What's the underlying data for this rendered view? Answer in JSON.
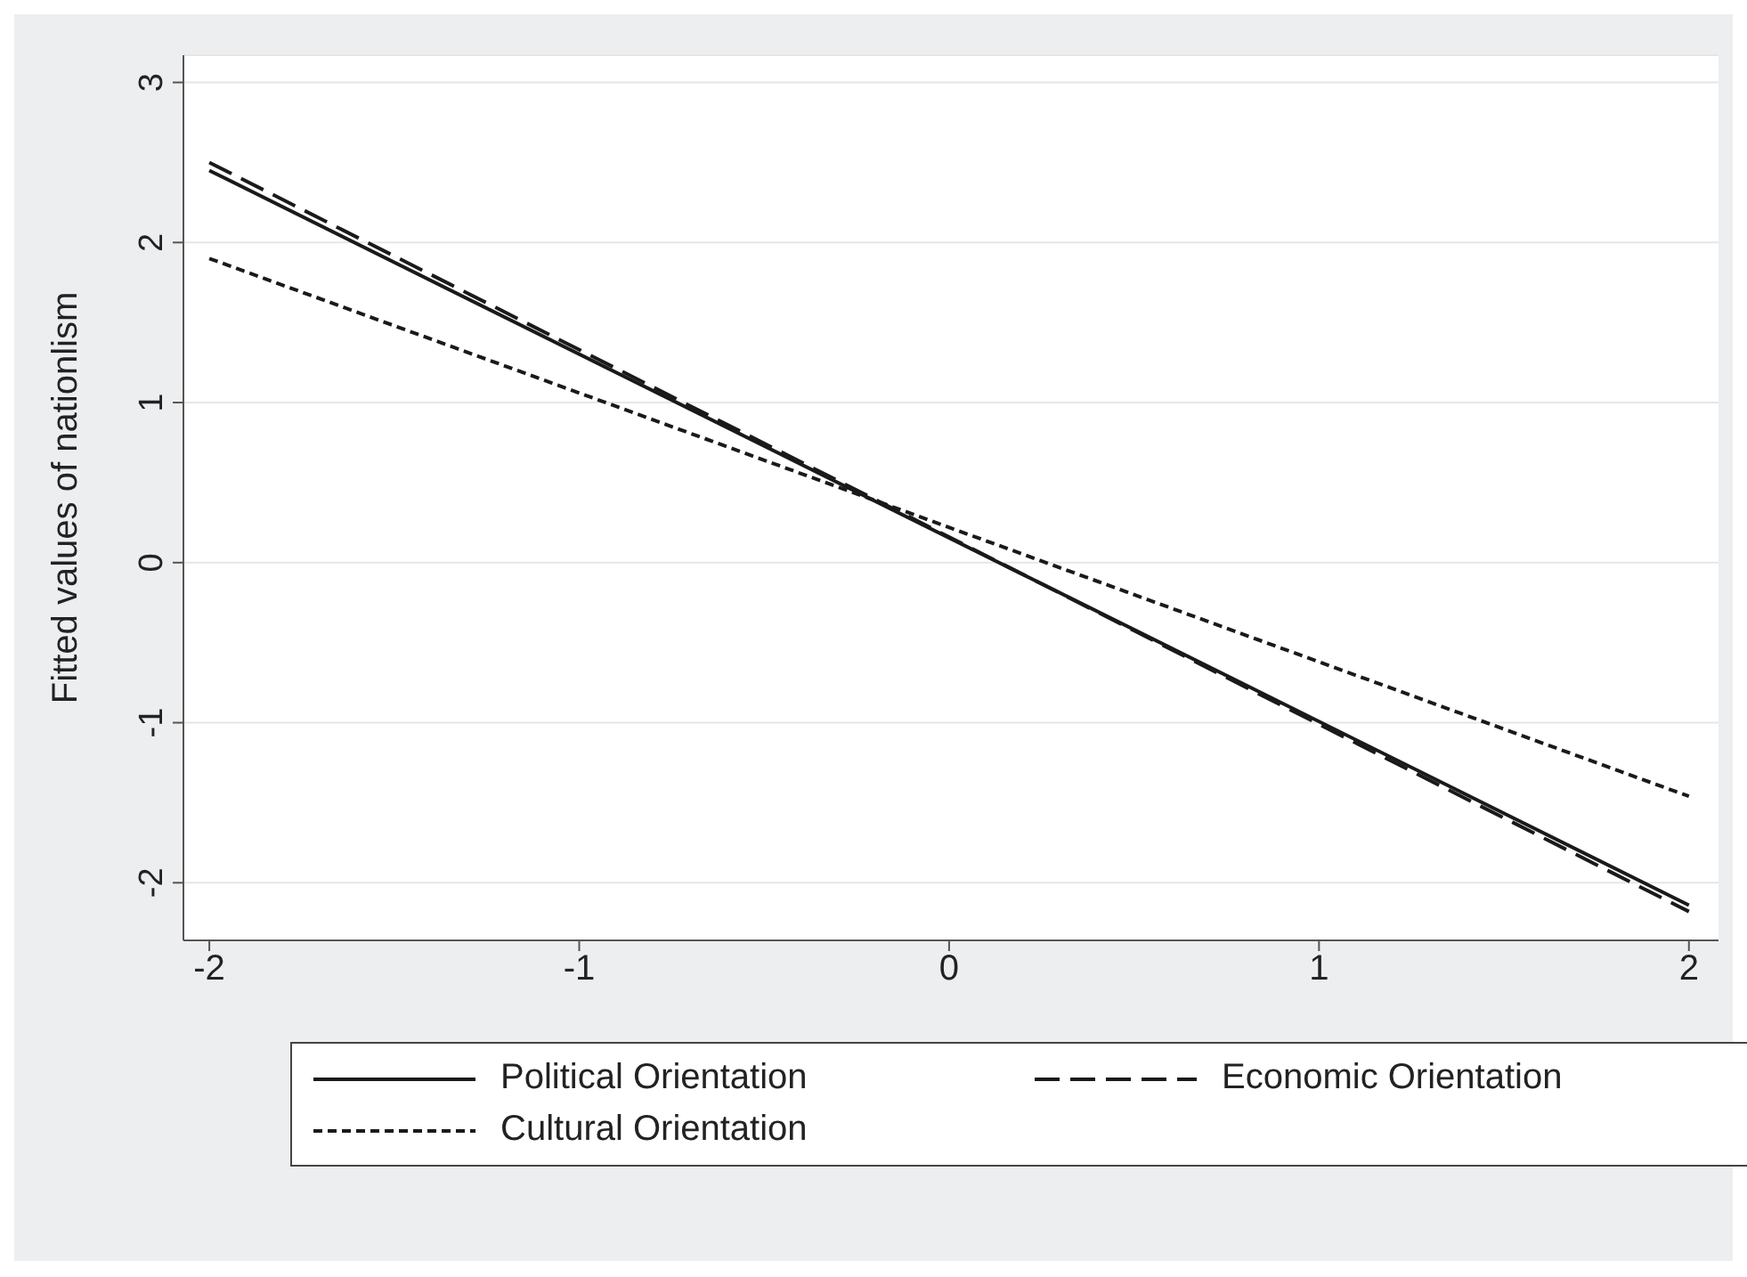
{
  "chart_data": {
    "type": "line",
    "ylabel": "Fitted values of nationlism",
    "x": [
      -2,
      2
    ],
    "series": [
      {
        "name": "Political Orientation",
        "color": "#1a1a1a",
        "values": [
          2.45,
          -2.14
        ],
        "line_style": "solid"
      },
      {
        "name": "Economic Orientation",
        "color": "#1a1a1a",
        "values": [
          2.5,
          -2.18
        ],
        "line_style": "dashed"
      },
      {
        "name": "Cultural Orientation",
        "color": "#1a1a1a",
        "values": [
          1.9,
          -1.46
        ],
        "line_style": "dotted"
      }
    ],
    "xlim": [
      -2.07,
      2.08
    ],
    "xticks": [
      -2,
      -1,
      0,
      1,
      2
    ],
    "ylim": [
      -2.36,
      3.17
    ],
    "yticks": [
      -2,
      -1,
      0,
      1,
      2,
      3
    ],
    "grid": "y",
    "legend": "bottom",
    "marker": "none"
  }
}
